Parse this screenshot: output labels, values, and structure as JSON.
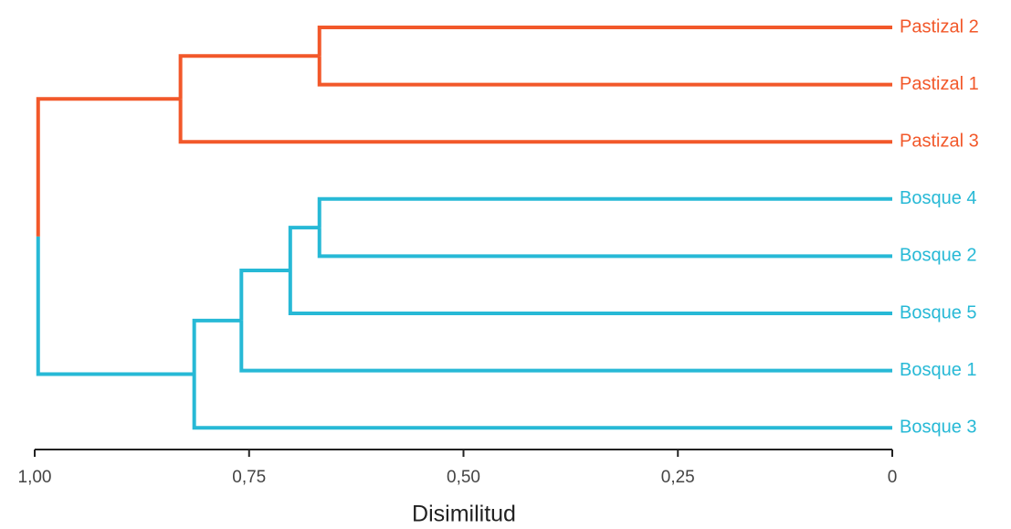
{
  "chart_data": {
    "type": "dendrogram",
    "leaves": [
      {
        "label": "Pastizal 2",
        "color": "#f2582a"
      },
      {
        "label": "Pastizal 1",
        "color": "#f2582a"
      },
      {
        "label": "Pastizal 3",
        "color": "#f2582a"
      },
      {
        "label": "Bosque 4",
        "color": "#27b9d6"
      },
      {
        "label": "Bosque 2",
        "color": "#27b9d6"
      },
      {
        "label": "Bosque 5",
        "color": "#27b9d6"
      },
      {
        "label": "Bosque 1",
        "color": "#27b9d6"
      },
      {
        "label": "Bosque 3",
        "color": "#27b9d6"
      }
    ],
    "merges": [
      {
        "children": [
          0,
          1
        ],
        "height": 0.668,
        "color": "#f2582a"
      },
      {
        "children": [
          8,
          2
        ],
        "height": 0.83,
        "color": "#f2582a"
      },
      {
        "children": [
          3,
          4
        ],
        "height": 0.668,
        "color": "#27b9d6"
      },
      {
        "children": [
          10,
          5
        ],
        "height": 0.702,
        "color": "#27b9d6"
      },
      {
        "children": [
          11,
          6
        ],
        "height": 0.759,
        "color": "#27b9d6"
      },
      {
        "children": [
          12,
          7
        ],
        "height": 0.814,
        "color": "#27b9d6"
      },
      {
        "children": [
          9,
          13
        ],
        "height": 0.996
      }
    ],
    "xlabel": "Disimilitud",
    "xlim": [
      1,
      0
    ],
    "xticks": [
      {
        "value": 1,
        "label": "1,00"
      },
      {
        "value": 0.75,
        "label": "0,75"
      },
      {
        "value": 0.5,
        "label": "0,50"
      },
      {
        "value": 0.25,
        "label": "0,25"
      },
      {
        "value": 0,
        "label": "0"
      }
    ]
  }
}
